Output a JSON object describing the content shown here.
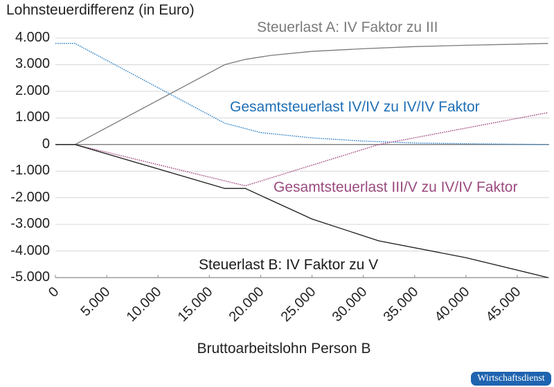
{
  "chart_data": {
    "type": "line",
    "title": "",
    "ylabel": "Lohnsteuerdifferenz (in Euro)",
    "xlabel": "Bruttoarbeitslohn Person B",
    "ylim": [
      -5000,
      4000
    ],
    "xlim": [
      0,
      48000
    ],
    "grid": true,
    "y_ticks": [
      "4.000",
      "3.000",
      "2.000",
      "1.000",
      "0",
      "-1.000",
      "-2.000",
      "-3.000",
      "-4.000",
      "-5.000"
    ],
    "x_ticks": [
      "0",
      "5.000",
      "10.000",
      "15.000",
      "20.000",
      "25.000",
      "30.000",
      "35.000",
      "40.000",
      "45.000"
    ],
    "series": [
      {
        "name": "Steuerlast A:  IV Faktor zu III",
        "color": "#7a7a7a",
        "style": "solid",
        "x": [
          0,
          1900,
          16500,
          18500,
          21000,
          25000,
          30000,
          35000,
          40000,
          45000,
          48000
        ],
        "values": [
          0,
          0,
          3000,
          3200,
          3350,
          3500,
          3600,
          3680,
          3730,
          3770,
          3800
        ]
      },
      {
        "name": "Gesamtsteuerlast IV/IV zu IV/IV Faktor",
        "color": "#2a7fc4",
        "style": "dotted",
        "x": [
          0,
          1900,
          16500,
          20000,
          25000,
          30000,
          35000,
          40000,
          45000,
          48000
        ],
        "values": [
          3800,
          3800,
          800,
          450,
          250,
          130,
          60,
          30,
          10,
          0
        ]
      },
      {
        "name": "Gesamtsteuerlast III/V zu IV/IV Faktor",
        "color": "#a0457e",
        "style": "dotted",
        "x": [
          0,
          1900,
          18500,
          31500,
          48000
        ],
        "values": [
          0,
          0,
          -1550,
          0,
          1200
        ]
      },
      {
        "name": "Steuerlast B: IV Faktor zu V",
        "color": "#1a1a1a",
        "style": "solid",
        "x": [
          0,
          1900,
          16500,
          18500,
          25000,
          31500,
          40000,
          48000
        ],
        "values": [
          0,
          0,
          -1650,
          -1650,
          -2800,
          -3620,
          -4250,
          -5000
        ]
      }
    ]
  },
  "labels": {
    "series_a": "Steuerlast A:  IV Faktor zu III",
    "series_ivv": "Gesamtsteuerlast IV/IV zu IV/IV Faktor",
    "series_iiiv": "Gesamtsteuerlast III/V zu IV/IV Faktor",
    "series_b": "Steuerlast B: IV Faktor zu V"
  },
  "colors": {
    "series_a": "#7a7a7a",
    "series_ivv": "#1f6fb5",
    "series_iiiv": "#9a4a7e",
    "series_b": "#1a1a1a",
    "badge": "#1f64b0"
  },
  "badge": {
    "label": "Wirtschaftsdienst"
  }
}
